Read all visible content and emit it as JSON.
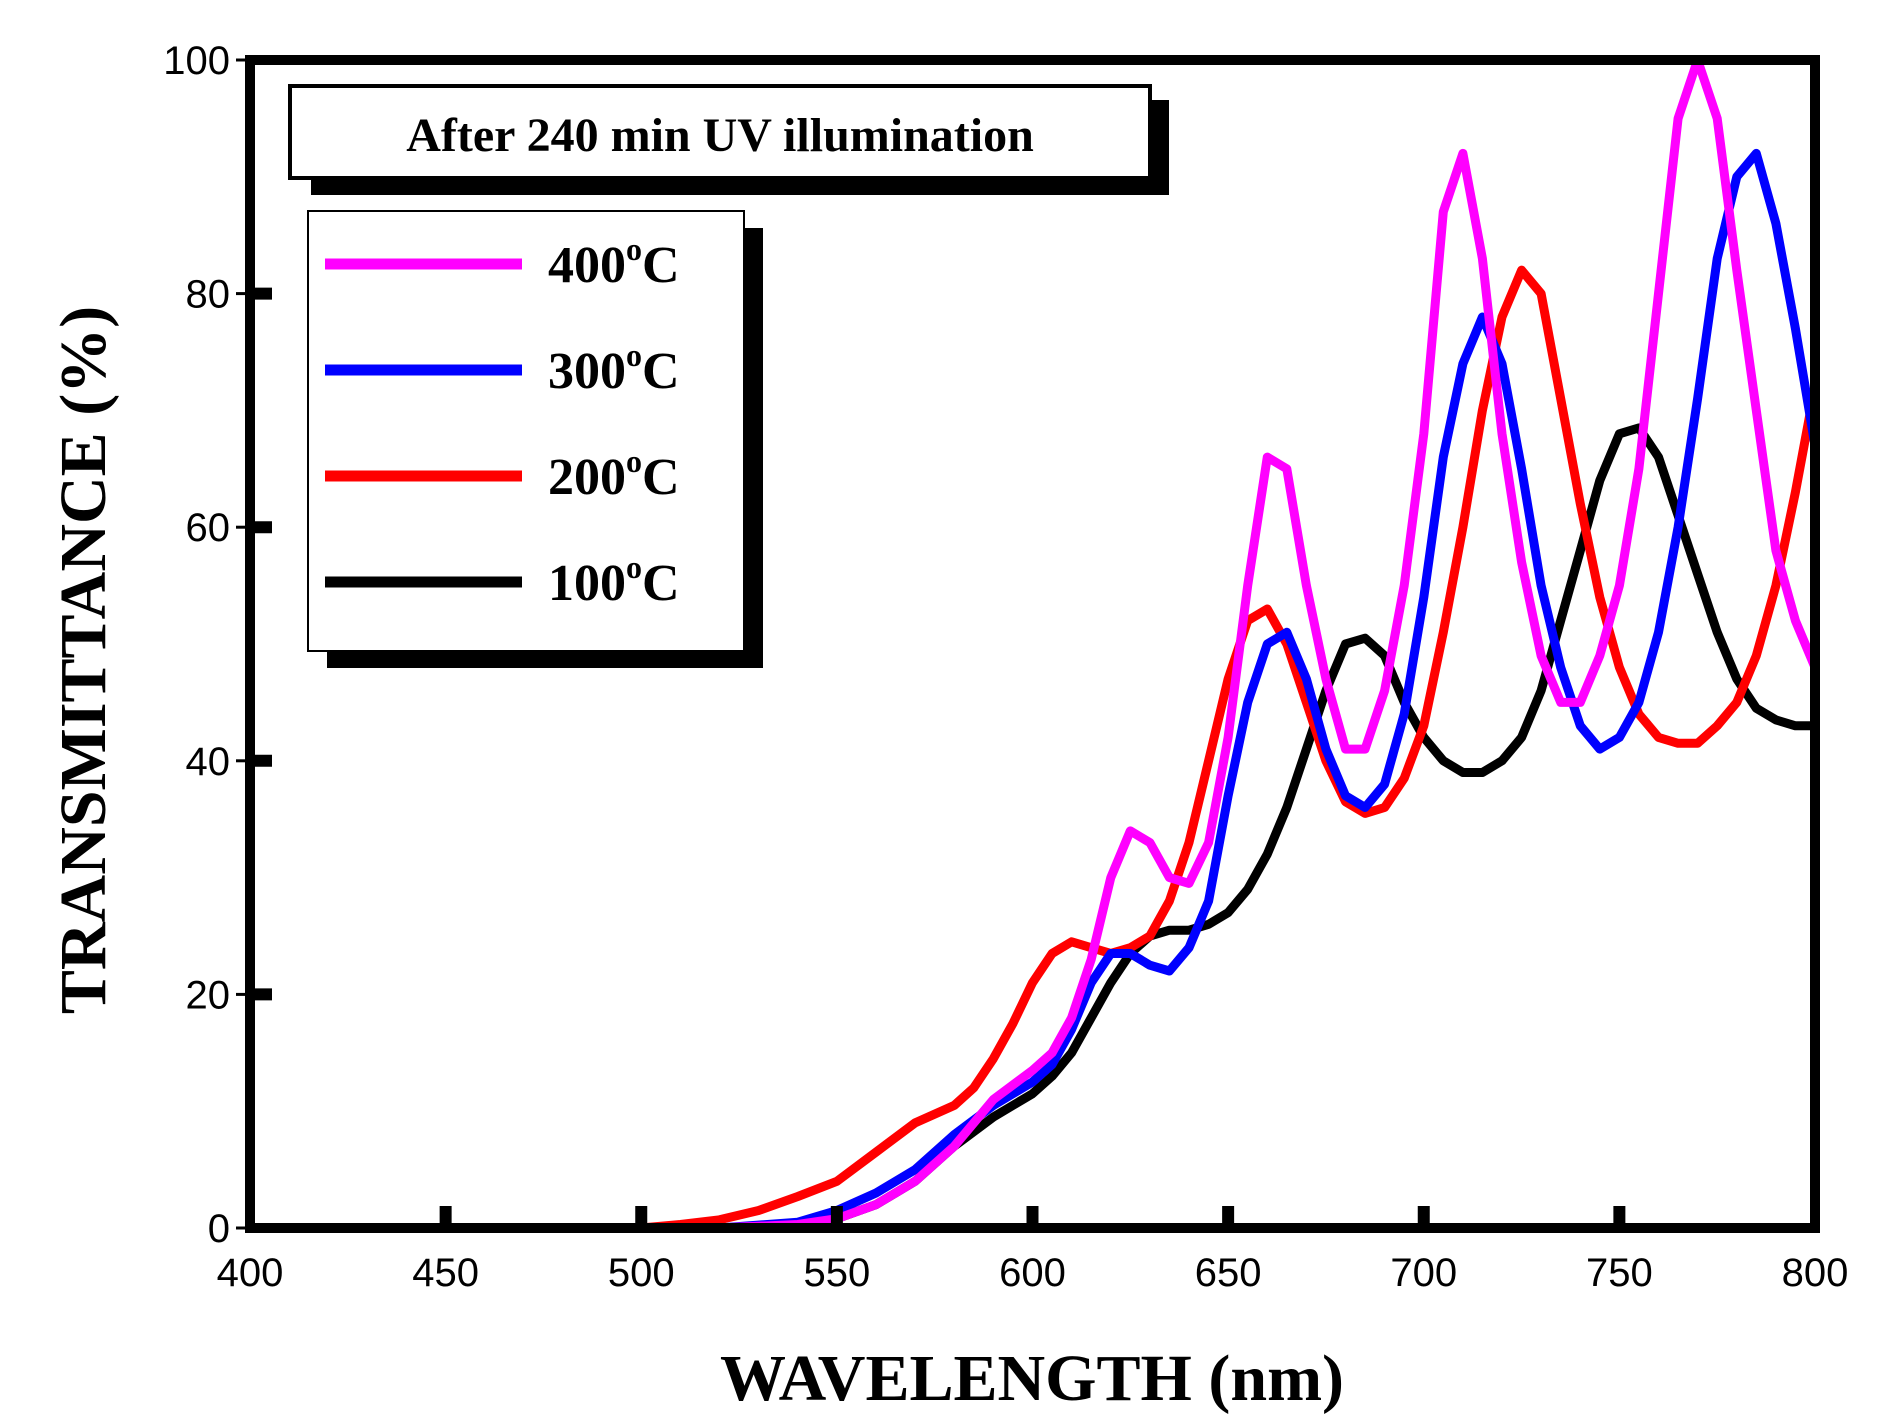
{
  "chart_data": {
    "type": "line",
    "title": "After 240 min UV illumination",
    "xlabel": "WAVELENGTH (nm)",
    "ylabel": "TRANSMITTANCE (%)",
    "xlim": [
      400,
      800
    ],
    "ylim": [
      0,
      100
    ],
    "xticks": [
      400,
      450,
      500,
      550,
      600,
      650,
      700,
      750,
      800
    ],
    "yticks": [
      0,
      20,
      40,
      60,
      80,
      100
    ],
    "legend_position": "top-left",
    "series": [
      {
        "name": "400",
        "superscript": "o",
        "unit": "C",
        "color": "#ff00ff",
        "x": [
          400,
          450,
          500,
          520,
          540,
          550,
          560,
          570,
          580,
          590,
          600,
          605,
          610,
          615,
          620,
          625,
          630,
          635,
          640,
          645,
          650,
          655,
          660,
          665,
          670,
          675,
          680,
          685,
          690,
          695,
          700,
          705,
          710,
          715,
          720,
          725,
          730,
          735,
          740,
          745,
          750,
          755,
          760,
          765,
          770,
          775,
          780,
          785,
          790,
          795,
          800
        ],
        "y": [
          0,
          0,
          0,
          0,
          0.3,
          0.8,
          2,
          4,
          7,
          11,
          13.5,
          15,
          18,
          23,
          30,
          34,
          33,
          30,
          29.5,
          33,
          42,
          55,
          66,
          65,
          55,
          47,
          41,
          41,
          46,
          55,
          68,
          87,
          92,
          83,
          68,
          57,
          49,
          45,
          45,
          49,
          55,
          65,
          80,
          95,
          100,
          95,
          82,
          70,
          58,
          52,
          48
        ]
      },
      {
        "name": "300",
        "superscript": "o",
        "unit": "C",
        "color": "#0000ff",
        "x": [
          400,
          450,
          500,
          520,
          540,
          550,
          560,
          570,
          580,
          590,
          600,
          605,
          610,
          615,
          620,
          625,
          630,
          635,
          640,
          645,
          650,
          655,
          660,
          665,
          670,
          675,
          680,
          685,
          690,
          695,
          700,
          705,
          710,
          715,
          720,
          725,
          730,
          735,
          740,
          745,
          750,
          755,
          760,
          765,
          770,
          775,
          780,
          785,
          790,
          795,
          800
        ],
        "y": [
          0,
          0,
          0,
          0,
          0.5,
          1.5,
          3,
          5,
          8,
          10.5,
          12.5,
          14,
          17,
          21,
          23.5,
          23.5,
          22.5,
          22,
          24,
          28,
          37,
          45,
          50,
          51,
          47,
          41,
          37,
          36,
          38,
          44,
          54,
          66,
          74,
          78,
          74,
          65,
          55,
          48,
          43,
          41,
          42,
          45,
          51,
          60,
          71,
          83,
          90,
          92,
          86,
          77,
          67
        ]
      },
      {
        "name": "200",
        "superscript": "o",
        "unit": "C",
        "color": "#ff0000",
        "x": [
          400,
          450,
          500,
          510,
          520,
          530,
          540,
          550,
          560,
          570,
          580,
          585,
          590,
          595,
          600,
          605,
          610,
          615,
          620,
          625,
          630,
          635,
          640,
          645,
          650,
          655,
          660,
          665,
          670,
          675,
          680,
          685,
          690,
          695,
          700,
          705,
          710,
          715,
          720,
          725,
          730,
          735,
          740,
          745,
          750,
          755,
          760,
          765,
          770,
          775,
          780,
          785,
          790,
          795,
          800
        ],
        "y": [
          0,
          0,
          0,
          0.3,
          0.7,
          1.5,
          2.7,
          4,
          6.5,
          9,
          10.5,
          12,
          14.5,
          17.5,
          21,
          23.5,
          24.5,
          24,
          23.5,
          24,
          25,
          28,
          33,
          40,
          47,
          52,
          53,
          50,
          45,
          40,
          36.5,
          35.5,
          36,
          38.5,
          43,
          51,
          60,
          70,
          78,
          82,
          80,
          71,
          62,
          54,
          48,
          44,
          42,
          41.5,
          41.5,
          43,
          45,
          49,
          55,
          63,
          72
        ]
      },
      {
        "name": "100",
        "superscript": "o",
        "unit": "C",
        "color": "#000000",
        "x": [
          400,
          450,
          500,
          530,
          540,
          550,
          560,
          570,
          580,
          590,
          600,
          605,
          610,
          615,
          620,
          625,
          630,
          635,
          640,
          645,
          650,
          655,
          660,
          665,
          670,
          675,
          680,
          685,
          690,
          695,
          700,
          705,
          710,
          715,
          720,
          725,
          730,
          735,
          740,
          745,
          750,
          755,
          760,
          765,
          770,
          775,
          780,
          785,
          790,
          795,
          800
        ],
        "y": [
          0,
          0,
          0,
          0,
          0.2,
          0.8,
          2,
          4,
          7,
          9.5,
          11.5,
          13,
          15,
          18,
          21,
          23.5,
          25,
          25.5,
          25.5,
          26,
          27,
          29,
          32,
          36,
          41,
          46,
          50,
          50.5,
          49,
          45,
          42,
          40,
          39,
          39,
          40,
          42,
          46,
          52,
          58,
          64,
          68,
          68.5,
          66,
          61,
          56,
          51,
          47,
          44.5,
          43.5,
          43,
          43
        ]
      }
    ]
  }
}
